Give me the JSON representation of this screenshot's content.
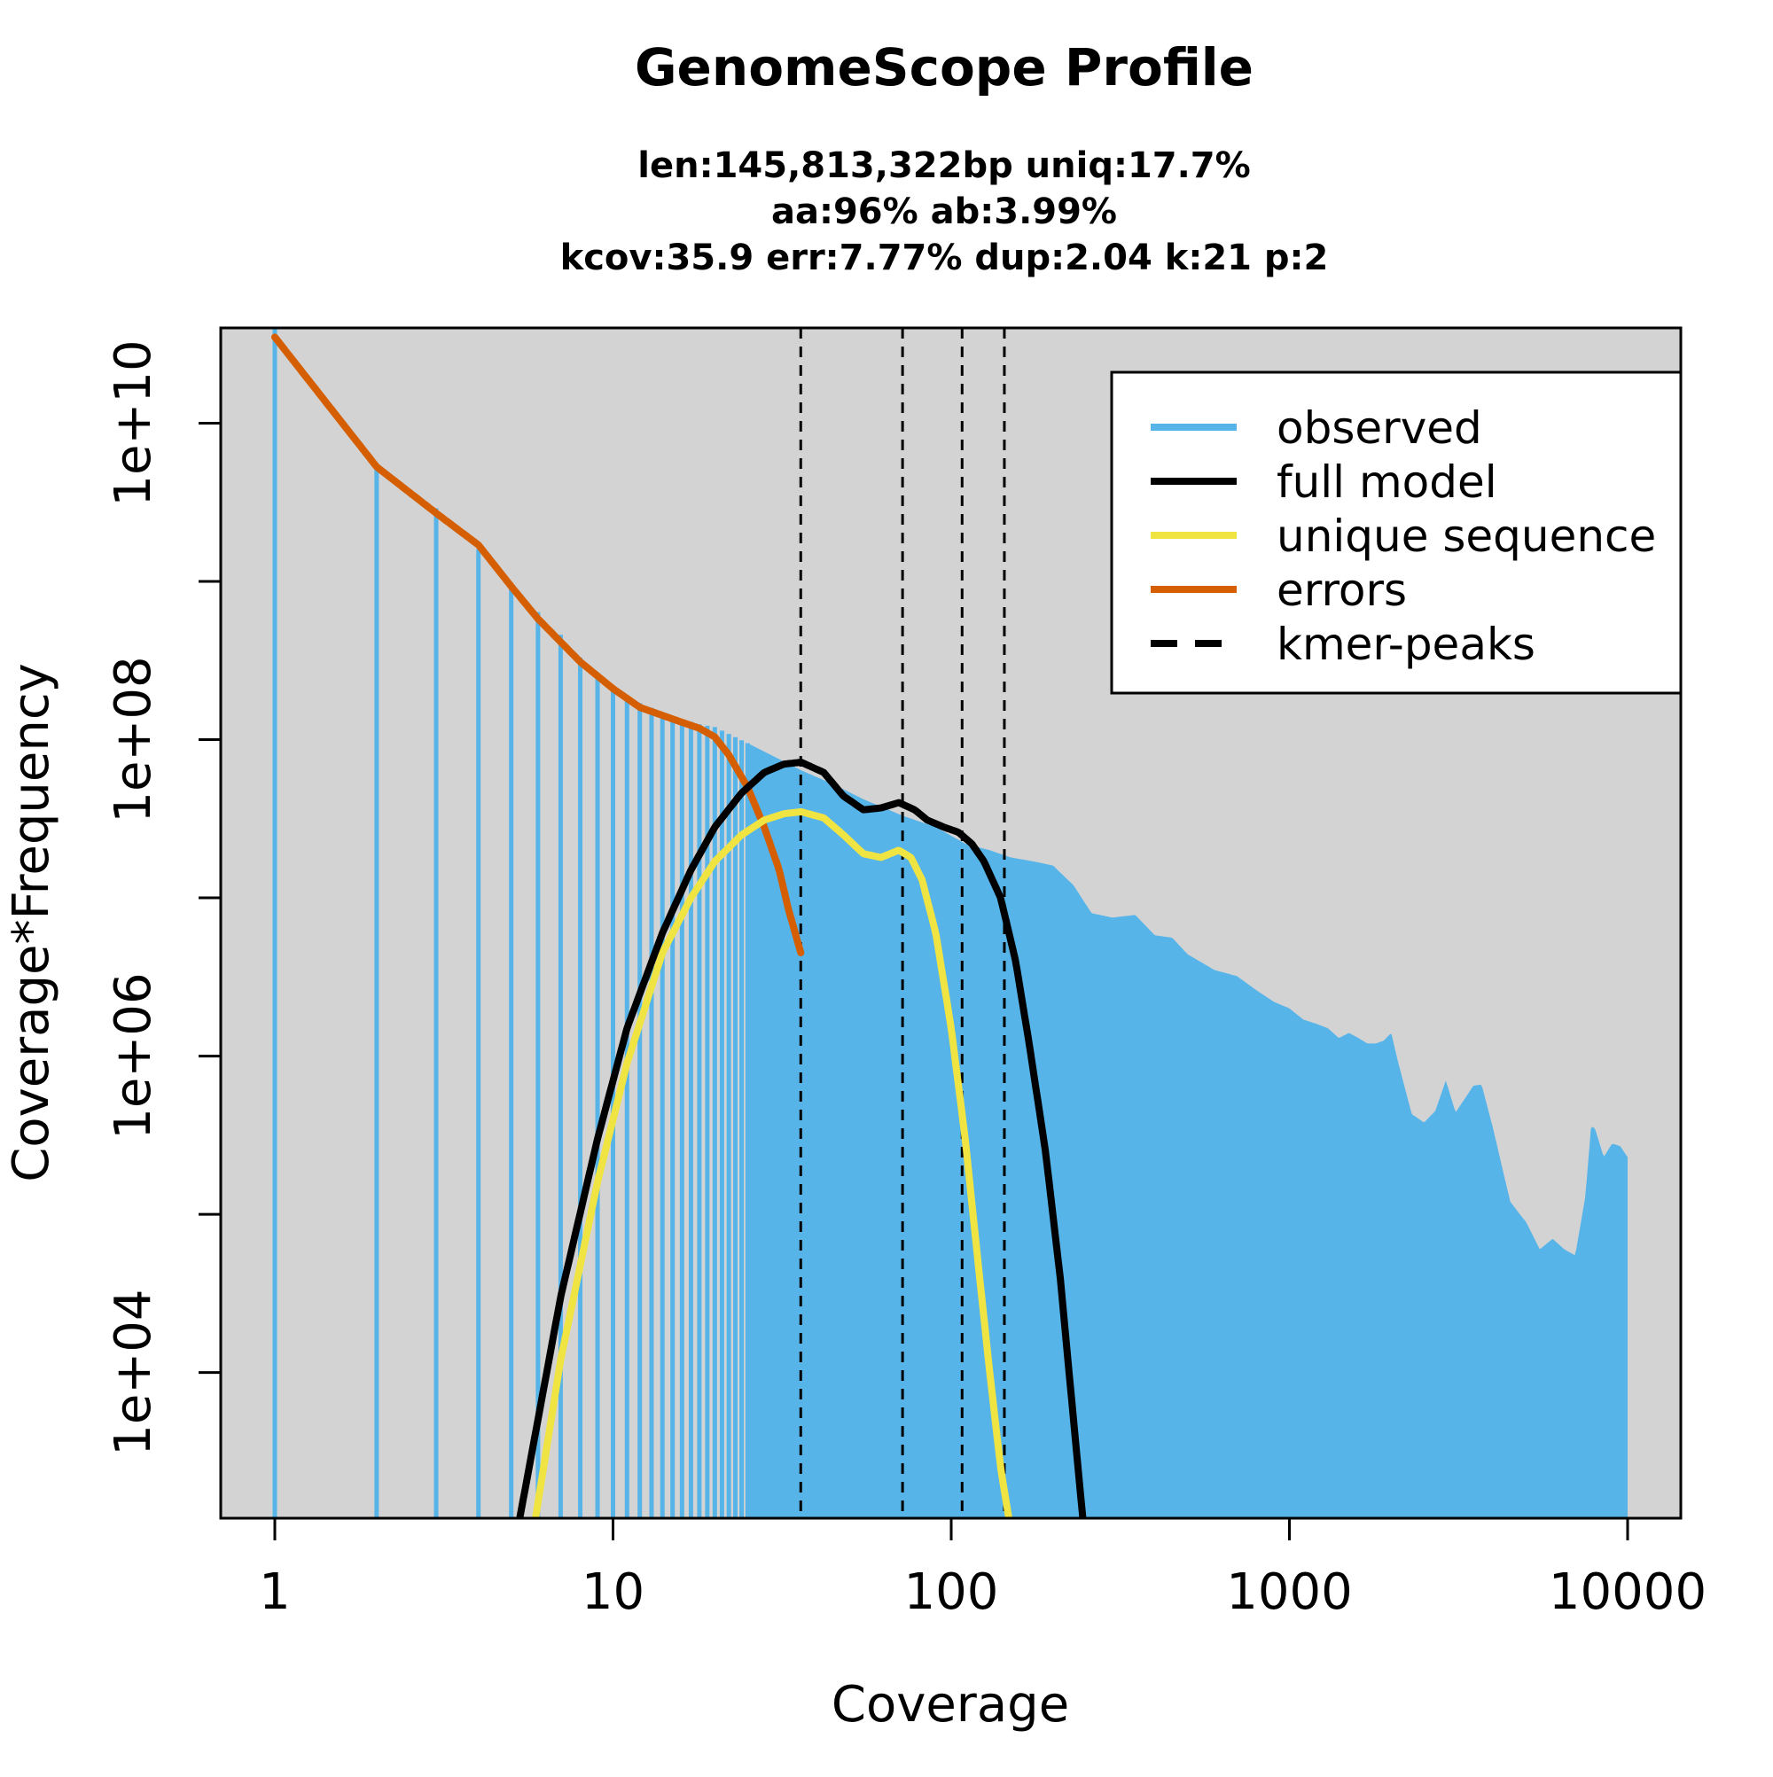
{
  "chart_data": {
    "type": "area",
    "title": "GenomeScope Profile",
    "subtitle": [
      "len:145,813,322bp uniq:17.7%",
      "aa:96% ab:3.99%",
      "kcov:35.9 err:7.77%  dup:2.04  k:21 p:2"
    ],
    "xlabel": "Coverage",
    "ylabel": "Coverage*Frequency",
    "x_scale": "log",
    "y_scale": "log",
    "xlim": [
      1,
      10000
    ],
    "ylim": [
      1200,
      40000000000
    ],
    "x_ticks": [
      1,
      10,
      100,
      1000,
      10000
    ],
    "x_tick_labels": [
      "1",
      "10",
      "100",
      "1000",
      "10000"
    ],
    "y_ticks": [
      10000,
      1000000,
      100000000,
      10000000000
    ],
    "y_tick_labels": [
      "1e+04",
      "1e+06",
      "1e+08",
      "1e+10"
    ],
    "y_minor_ticks": [
      100000,
      10000000,
      1000000000
    ],
    "background": "#d3d3d3",
    "grid": false,
    "legend_placement": "top-right",
    "legend": [
      {
        "label": "observed",
        "color": "#56b4e9",
        "style": "solid"
      },
      {
        "label": "full model",
        "color": "#000000",
        "style": "solid"
      },
      {
        "label": "unique sequence",
        "color": "#f0e442",
        "style": "solid"
      },
      {
        "label": "errors",
        "color": "#d55e00",
        "style": "solid"
      },
      {
        "label": "kmer-peaks",
        "color": "#000000",
        "style": "dashed"
      }
    ],
    "kmer_peaks": [
      35.9,
      71.8,
      107.7,
      143.6
    ],
    "series": [
      {
        "name": "observed",
        "color": "#56b4e9",
        "render": "bars-then-area",
        "x": [
          1,
          2,
          3,
          4,
          5,
          6,
          7,
          8,
          9,
          10,
          12,
          15,
          18,
          20,
          25,
          30,
          36,
          45,
          55,
          72,
          90,
          110,
          130,
          150,
          175,
          200,
          230,
          260,
          300,
          350,
          400,
          450,
          500,
          600,
          700,
          800,
          900,
          1000,
          1100,
          1200,
          1300,
          1400,
          1500,
          1600,
          1700,
          1800,
          1900,
          2000,
          2100,
          2300,
          2500,
          2700,
          2900,
          3100,
          3500,
          3700,
          4000,
          4300,
          4500,
          4800,
          5000,
          5500,
          6000,
          6500,
          7000,
          7500,
          7800,
          8000,
          8500,
          9000,
          9500,
          10000
        ],
        "y": [
          40000000000,
          5400000000,
          2900000000,
          1600000000,
          970000000,
          640000000,
          460000000,
          330000000,
          260000000,
          210000000,
          170000000,
          140000000,
          125000000,
          120000000,
          95000000,
          78000000,
          64000000,
          52000000,
          42000000,
          33000000,
          28000000,
          22000000,
          20000000,
          18000000,
          17000000,
          16000000,
          12000000,
          8000000,
          7500000,
          7800000,
          5800000,
          5600000,
          4400000,
          3500000,
          3200000,
          2600000,
          2200000,
          2000000,
          1700000,
          1600000,
          1500000,
          1300000,
          1400000,
          1300000,
          1200000,
          1200000,
          1250000,
          1400000,
          900000,
          430000,
          380000,
          450000,
          700000,
          440000,
          650000,
          660000,
          350000,
          180000,
          120000,
          100000,
          90000,
          60000,
          70000,
          60000,
          55000,
          130000,
          360000,
          350000,
          230000,
          280000,
          270000,
          230000
        ]
      },
      {
        "name": "full model",
        "color": "#000000",
        "x": [
          5.3,
          7,
          9,
          11,
          14,
          17,
          20,
          24,
          28,
          32,
          36,
          42,
          48,
          55,
          62,
          70,
          78,
          85,
          95,
          105,
          115,
          125,
          140,
          155,
          170,
          190,
          210,
          230,
          245
        ],
        "y": [
          1200,
          30000,
          300000,
          1500000,
          6000000,
          15000000,
          28000000,
          46000000,
          62000000,
          70000000,
          72000000,
          62000000,
          44000000,
          36000000,
          37000000,
          40000000,
          36000000,
          31000000,
          28000000,
          26000000,
          22000000,
          17000000,
          10000000,
          4000000,
          1200000,
          250000,
          40000,
          5000,
          1200
        ]
      },
      {
        "name": "unique sequence",
        "color": "#f0e442",
        "x": [
          5.9,
          7,
          9,
          11,
          14,
          17,
          20,
          24,
          28,
          32,
          36,
          42,
          48,
          55,
          62,
          70,
          76,
          82,
          90,
          100,
          110,
          120,
          130,
          140,
          148
        ],
        "y": [
          1200,
          12000,
          160000,
          900000,
          4500000,
          10000000,
          17000000,
          25000000,
          31000000,
          34000000,
          35000000,
          32000000,
          25000000,
          19000000,
          18000000,
          20000000,
          18000000,
          13000000,
          6000000,
          1500000,
          300000,
          50000,
          10000,
          2500,
          1200
        ]
      },
      {
        "name": "errors",
        "color": "#d55e00",
        "x": [
          1,
          2,
          3,
          4,
          5,
          6,
          8,
          10,
          12,
          15,
          18,
          20,
          22,
          25,
          28,
          31,
          33,
          35.9
        ],
        "y": [
          35000000000,
          5300000000,
          2700000000,
          1700000000,
          930000000,
          580000000,
          310000000,
          210000000,
          160000000,
          135000000,
          118000000,
          104000000,
          80000000,
          50000000,
          28000000,
          15000000,
          8500000,
          4500000
        ]
      }
    ]
  }
}
